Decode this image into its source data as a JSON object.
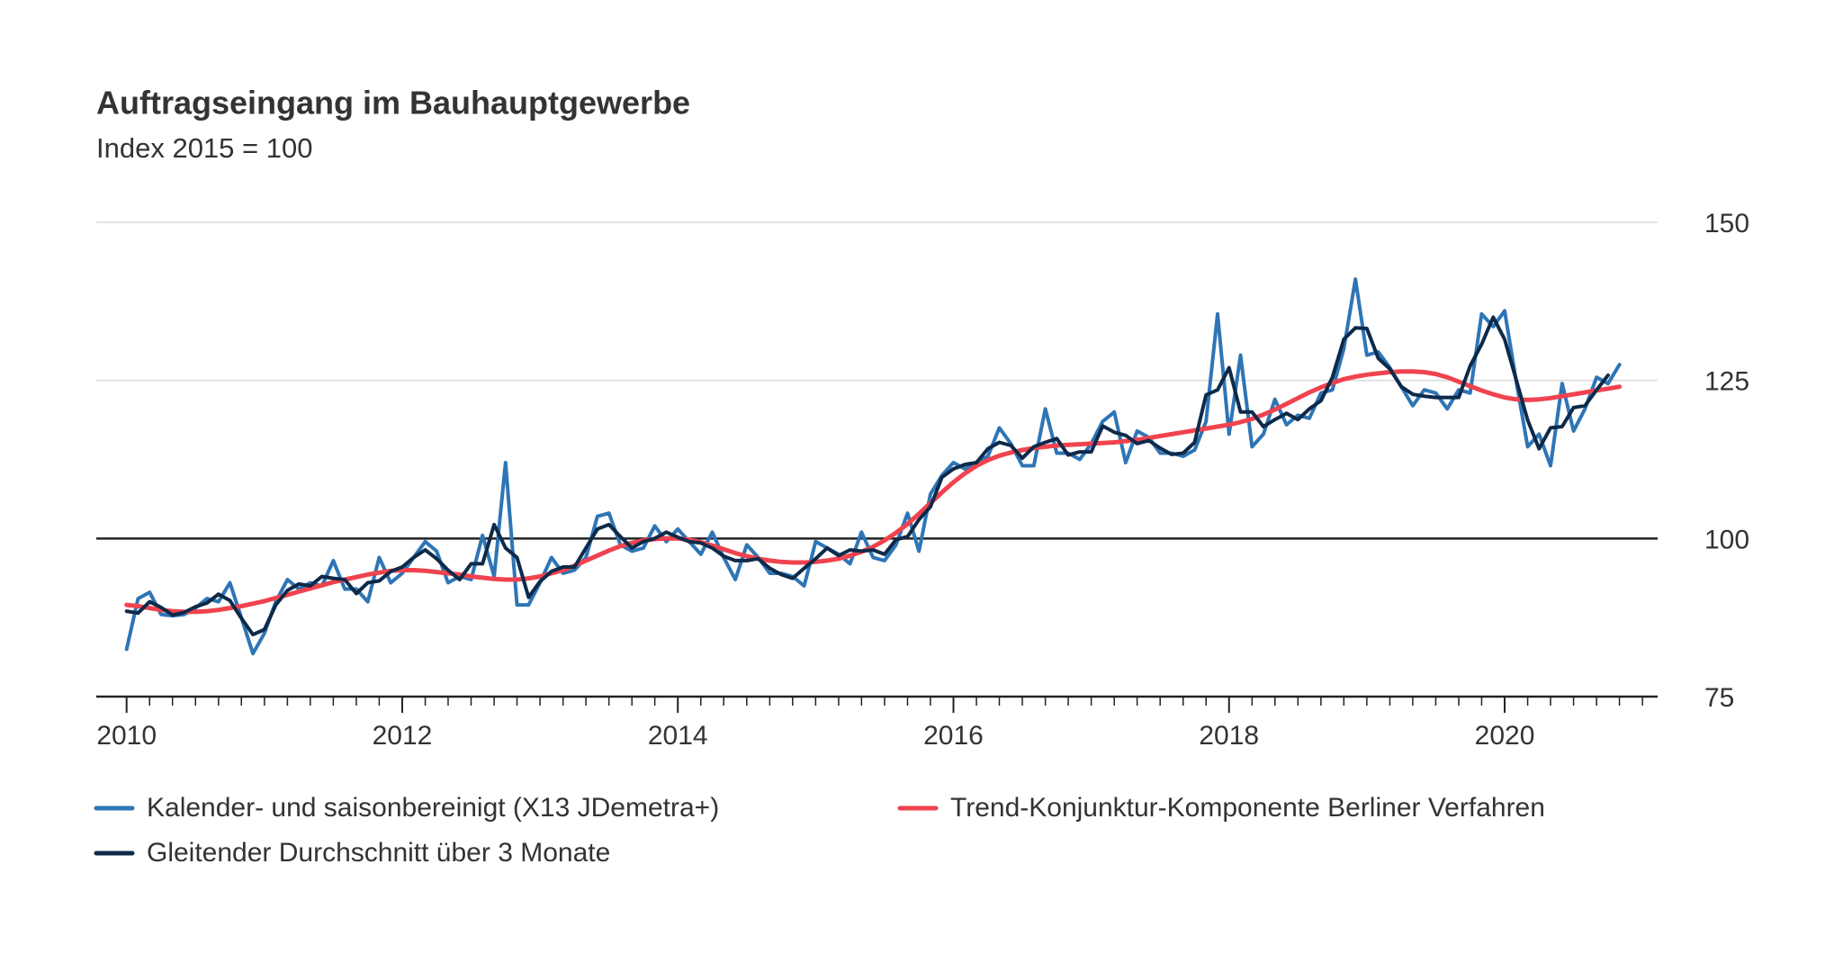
{
  "chart_data": {
    "type": "line",
    "title": "Auftragseingang im Bauhauptgewerbe",
    "subtitle": "Index 2015 = 100",
    "x": [
      2010,
      2010.083,
      2010.167,
      2010.25,
      2010.333,
      2010.417,
      2010.5,
      2010.583,
      2010.667,
      2010.75,
      2010.833,
      2010.917,
      2011,
      2011.083,
      2011.167,
      2011.25,
      2011.333,
      2011.417,
      2011.5,
      2011.583,
      2011.667,
      2011.75,
      2011.833,
      2011.917,
      2012,
      2012.083,
      2012.167,
      2012.25,
      2012.333,
      2012.417,
      2012.5,
      2012.583,
      2012.667,
      2012.75,
      2012.833,
      2012.917,
      2013,
      2013.083,
      2013.167,
      2013.25,
      2013.333,
      2013.417,
      2013.5,
      2013.583,
      2013.667,
      2013.75,
      2013.833,
      2013.917,
      2014,
      2014.083,
      2014.167,
      2014.25,
      2014.333,
      2014.417,
      2014.5,
      2014.583,
      2014.667,
      2014.75,
      2014.833,
      2014.917,
      2015,
      2015.083,
      2015.167,
      2015.25,
      2015.333,
      2015.417,
      2015.5,
      2015.583,
      2015.667,
      2015.75,
      2015.833,
      2015.917,
      2016,
      2016.083,
      2016.167,
      2016.25,
      2016.333,
      2016.417,
      2016.5,
      2016.583,
      2016.667,
      2016.75,
      2016.833,
      2016.917,
      2017,
      2017.083,
      2017.167,
      2017.25,
      2017.333,
      2017.417,
      2017.5,
      2017.583,
      2017.667,
      2017.75,
      2017.833,
      2017.917,
      2018,
      2018.083,
      2018.167,
      2018.25,
      2018.333,
      2018.417,
      2018.5,
      2018.583,
      2018.667,
      2018.75,
      2018.833,
      2018.917,
      2019,
      2019.083,
      2019.167,
      2019.25,
      2019.333,
      2019.417,
      2019.5,
      2019.583,
      2019.667,
      2019.75,
      2019.833,
      2019.917,
      2020,
      2020.083,
      2020.167,
      2020.25,
      2020.333,
      2020.417,
      2020.5,
      2020.583,
      2020.667,
      2020.75,
      2020.833
    ],
    "series": [
      {
        "name": "Kalender- und saisonbereinigt (X13 JDemetra+)",
        "color": "#2e75b6",
        "width": 4,
        "values": [
          82.5,
          90.5,
          91.5,
          88,
          87.8,
          88,
          89,
          90.5,
          90,
          93,
          87.5,
          81.8,
          85,
          90,
          93.5,
          92,
          93,
          92.5,
          96.5,
          92,
          92,
          90,
          97,
          93,
          94.5,
          97,
          99.5,
          98,
          93,
          94,
          93.5,
          100.5,
          94,
          112,
          89.5,
          89.5,
          93,
          97,
          94.5,
          95,
          97,
          103.5,
          104,
          99,
          98,
          98.5,
          102,
          99.5,
          101.5,
          99.5,
          97.5,
          101,
          97,
          93.5,
          99,
          97,
          94.5,
          94.5,
          94,
          92.5,
          99.5,
          98.5,
          97.5,
          96,
          101,
          97,
          96.5,
          99,
          104,
          98,
          107,
          110,
          112,
          111,
          112,
          113,
          117.5,
          115,
          111.5,
          111.5,
          120.5,
          113.5,
          113.5,
          112.5,
          115,
          118.5,
          120,
          112,
          117,
          116,
          113.5,
          113.5,
          113,
          114,
          118.5,
          135.5,
          116.5,
          129,
          114.5,
          116.5,
          122,
          118,
          119.5,
          119,
          123,
          123.5,
          130,
          141,
          129,
          129.5,
          127,
          124,
          121,
          123.5,
          123,
          120.5,
          123.5,
          123,
          135.5,
          133.5,
          136,
          125,
          114.5,
          116.5,
          111.5,
          124.5,
          117,
          120.5,
          125.5,
          124.5,
          127.5
        ]
      },
      {
        "name": "Trend-Konjunktur-Komponente Berliner Verfahren",
        "color": "#f0434f",
        "width": 5,
        "values": [
          89.5,
          89.3,
          89.0,
          88.7,
          88.5,
          88.4,
          88.4,
          88.5,
          88.7,
          89.0,
          89.3,
          89.7,
          90.1,
          90.6,
          91.1,
          91.6,
          92.1,
          92.6,
          93.1,
          93.5,
          93.9,
          94.3,
          94.6,
          94.9,
          95.0,
          95.0,
          94.9,
          94.7,
          94.5,
          94.3,
          94.0,
          93.8,
          93.6,
          93.5,
          93.5,
          93.7,
          94.0,
          94.5,
          95.0,
          95.7,
          96.5,
          97.3,
          98.1,
          98.8,
          99.3,
          99.7,
          99.9,
          100.0,
          100.0,
          99.8,
          99.4,
          98.9,
          98.3,
          97.7,
          97.2,
          96.8,
          96.5,
          96.3,
          96.2,
          96.2,
          96.3,
          96.5,
          96.8,
          97.3,
          97.9,
          98.7,
          99.7,
          100.9,
          102.3,
          103.9,
          105.6,
          107.3,
          108.9,
          110.3,
          111.5,
          112.4,
          113.1,
          113.6,
          114.0,
          114.3,
          114.5,
          114.7,
          114.8,
          114.9,
          115.0,
          115.1,
          115.2,
          115.4,
          115.6,
          115.9,
          116.2,
          116.5,
          116.8,
          117.1,
          117.4,
          117.7,
          118.0,
          118.4,
          118.9,
          119.6,
          120.4,
          121.3,
          122.2,
          123.1,
          123.9,
          124.6,
          125.2,
          125.6,
          125.9,
          126.1,
          126.3,
          126.4,
          126.4,
          126.3,
          126.0,
          125.5,
          124.8,
          124.1,
          123.4,
          122.8,
          122.3,
          122.0,
          121.9,
          122.0,
          122.2,
          122.5,
          122.8,
          123.1,
          123.4,
          123.7,
          124.0
        ]
      },
      {
        "name": "Gleitender Durchschnitt über 3 Monate",
        "color": "#0e2a4a",
        "width": 4,
        "values": [
          88.5,
          88.2,
          90,
          89.1,
          87.9,
          88.3,
          89.2,
          89.8,
          91.2,
          90.2,
          87.4,
          84.8,
          85.6,
          89.5,
          91.8,
          92.8,
          92.5,
          94,
          93.7,
          93.5,
          91.3,
          93,
          93.3,
          94.8,
          95.5,
          97,
          98.2,
          96.8,
          95,
          93.5,
          96,
          96,
          102.2,
          98.5,
          97,
          90.7,
          93.2,
          94.8,
          95.5,
          95.5,
          98.5,
          101.5,
          102.2,
          100.3,
          98.5,
          99.5,
          100,
          101,
          100.2,
          99.5,
          99.3,
          98.5,
          97.2,
          96.5,
          96.5,
          96.8,
          95.3,
          94.3,
          93.7,
          95.3,
          96.8,
          98.5,
          97.3,
          98.2,
          98,
          98.2,
          97.5,
          99.8,
          100.3,
          103,
          105,
          109.7,
          111,
          111.7,
          112,
          114.2,
          115.2,
          114.7,
          112.7,
          114.5,
          115.2,
          115.8,
          113.2,
          113.7,
          113.7,
          117.8,
          116.8,
          116.3,
          115,
          115.5,
          114.3,
          113.3,
          113.5,
          115.2,
          122.7,
          123.5,
          127,
          120,
          120,
          117.7,
          118.8,
          119.8,
          118.8,
          120.5,
          121.8,
          125.5,
          131.5,
          133.3,
          133.2,
          128.5,
          126.8,
          124,
          122.8,
          122.5,
          122.3,
          122.3,
          122.3,
          127.3,
          130.7,
          135,
          131.5,
          125.2,
          118.7,
          114.2,
          117.5,
          117.7,
          120.7,
          121,
          123.5,
          125.8,
          null
        ]
      }
    ],
    "xlim": [
      2009.78,
      2021.11
    ],
    "xticks": [
      2010,
      2012,
      2014,
      2016,
      2018,
      2020
    ],
    "xticks_minor": [
      2010,
      2010.167,
      2010.333,
      2010.5,
      2010.667,
      2010.833,
      2011,
      2011.167,
      2011.333,
      2011.5,
      2011.667,
      2011.833,
      2012,
      2012.167,
      2012.333,
      2012.5,
      2012.667,
      2012.833,
      2013,
      2013.167,
      2013.333,
      2013.5,
      2013.667,
      2013.833,
      2014,
      2014.167,
      2014.333,
      2014.5,
      2014.667,
      2014.833,
      2015,
      2015.167,
      2015.333,
      2015.5,
      2015.667,
      2015.833,
      2016,
      2016.167,
      2016.333,
      2016.5,
      2016.667,
      2016.833,
      2017,
      2017.167,
      2017.333,
      2017.5,
      2017.667,
      2017.833,
      2018,
      2018.167,
      2018.333,
      2018.5,
      2018.667,
      2018.833,
      2019,
      2019.167,
      2019.333,
      2019.5,
      2019.667,
      2019.833,
      2020,
      2020.167,
      2020.333,
      2020.5,
      2020.667,
      2020.833,
      2021
    ],
    "ylim": [
      75,
      150
    ],
    "yticks": [
      75,
      100,
      125,
      150
    ],
    "reference_line": 100,
    "grid": true,
    "legend": "bottom"
  }
}
